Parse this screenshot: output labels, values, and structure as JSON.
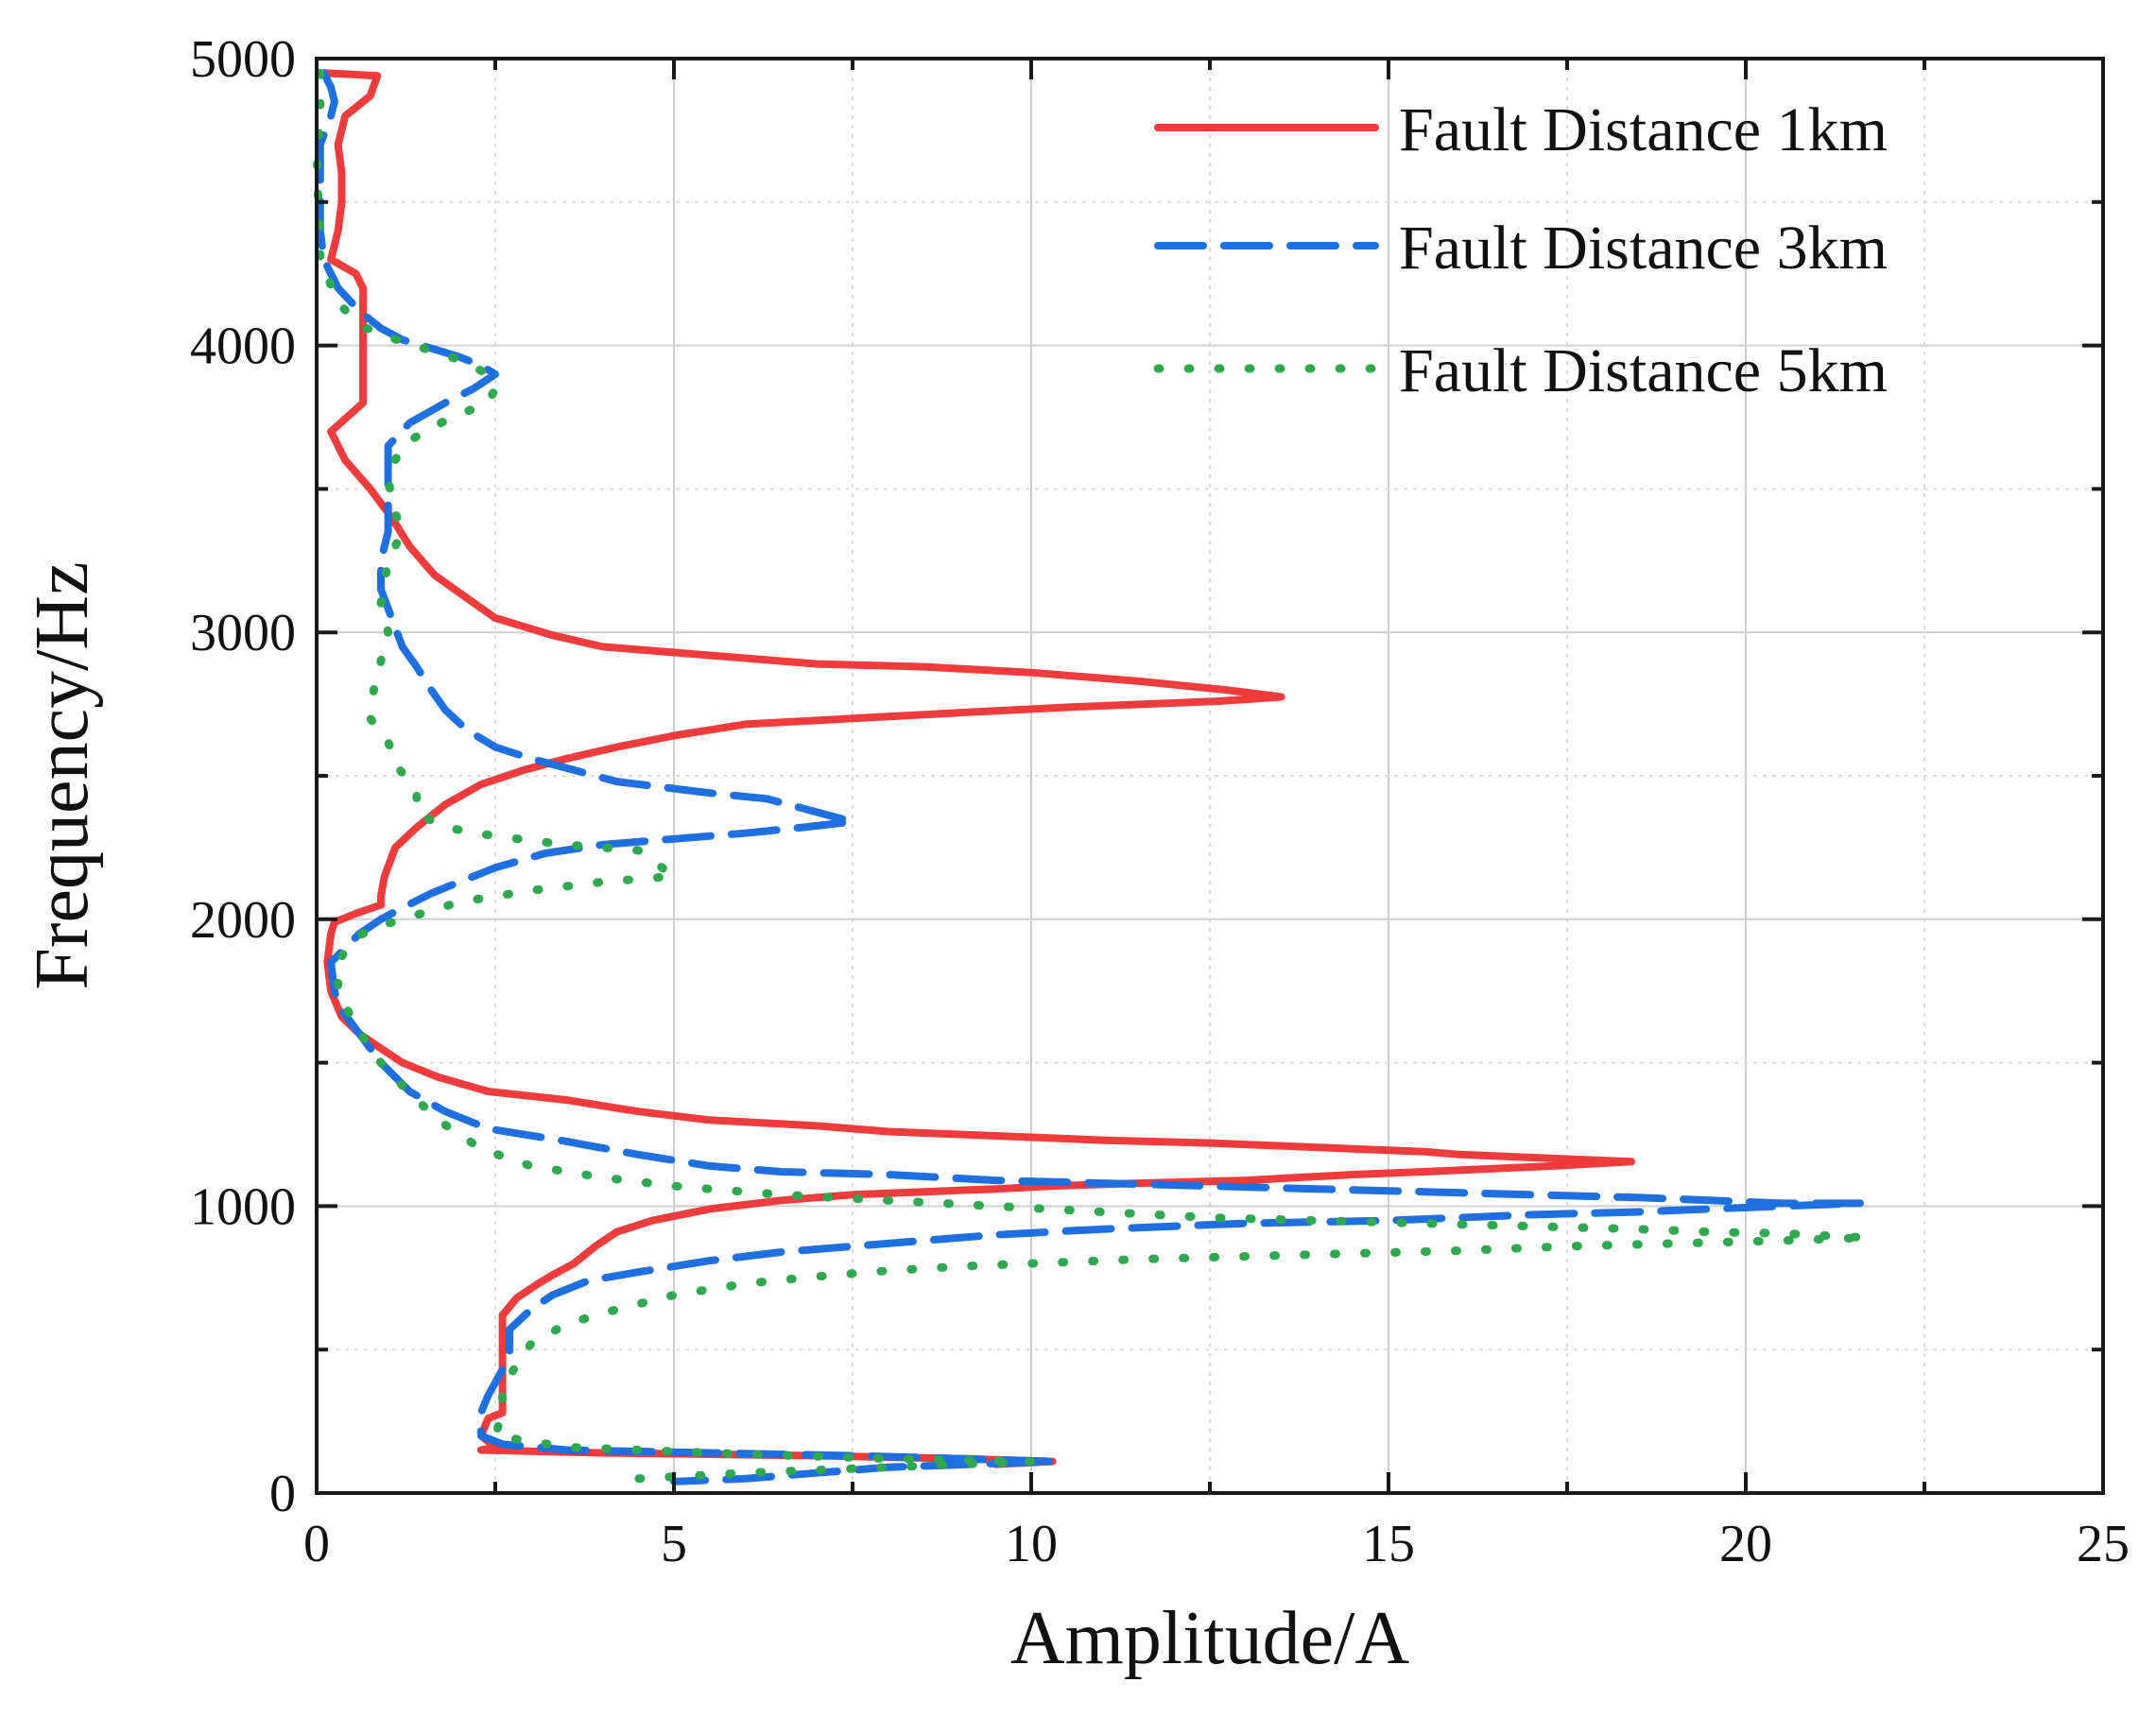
{
  "chart_data": {
    "type": "line",
    "title": "",
    "xlabel": "Amplitude/A",
    "ylabel": "Frequency/Hz",
    "xlim": [
      0,
      25
    ],
    "ylim": [
      0,
      5000
    ],
    "xticks": [
      0,
      5,
      10,
      15,
      20,
      25
    ],
    "yticks": [
      0,
      1000,
      2000,
      3000,
      4000,
      5000
    ],
    "xtick_labels": [
      "0",
      "5",
      "10",
      "15",
      "20",
      "25"
    ],
    "ytick_labels": [
      "0",
      "1000",
      "2000",
      "3000",
      "4000",
      "5000"
    ],
    "grid": true,
    "legend_position": "top-right",
    "series": [
      {
        "name": "Fault Distance 1km",
        "color": "#ee3b3b",
        "dash": "solid",
        "points": [
          [
            0.1,
            4950
          ],
          [
            0.85,
            4940
          ],
          [
            0.75,
            4870
          ],
          [
            0.4,
            4800
          ],
          [
            0.3,
            4700
          ],
          [
            0.35,
            4600
          ],
          [
            0.35,
            4500
          ],
          [
            0.3,
            4400
          ],
          [
            0.2,
            4300
          ],
          [
            0.55,
            4250
          ],
          [
            0.65,
            4200
          ],
          [
            0.65,
            4100
          ],
          [
            0.65,
            4000
          ],
          [
            0.65,
            3900
          ],
          [
            0.65,
            3800
          ],
          [
            0.2,
            3700
          ],
          [
            0.4,
            3600
          ],
          [
            0.75,
            3500
          ],
          [
            1.05,
            3400
          ],
          [
            1.3,
            3300
          ],
          [
            1.65,
            3200
          ],
          [
            2.1,
            3120
          ],
          [
            2.5,
            3050
          ],
          [
            3.3,
            2990
          ],
          [
            4.0,
            2950
          ],
          [
            5.5,
            2920
          ],
          [
            7.0,
            2890
          ],
          [
            8.5,
            2880
          ],
          [
            10.0,
            2860
          ],
          [
            11.5,
            2830
          ],
          [
            12.7,
            2800
          ],
          [
            13.5,
            2775
          ],
          [
            12.6,
            2760
          ],
          [
            10.6,
            2740
          ],
          [
            9.0,
            2720
          ],
          [
            7.5,
            2700
          ],
          [
            6.0,
            2680
          ],
          [
            5.0,
            2640
          ],
          [
            4.2,
            2600
          ],
          [
            3.5,
            2560
          ],
          [
            2.9,
            2520
          ],
          [
            2.3,
            2470
          ],
          [
            1.8,
            2400
          ],
          [
            1.4,
            2320
          ],
          [
            1.1,
            2250
          ],
          [
            0.95,
            2150
          ],
          [
            0.9,
            2080
          ],
          [
            0.9,
            2050
          ],
          [
            0.55,
            2020
          ],
          [
            0.25,
            1990
          ],
          [
            0.2,
            1950
          ],
          [
            0.15,
            1850
          ],
          [
            0.2,
            1750
          ],
          [
            0.35,
            1660
          ],
          [
            0.6,
            1600
          ],
          [
            0.9,
            1550
          ],
          [
            1.2,
            1500
          ],
          [
            1.7,
            1450
          ],
          [
            2.4,
            1400
          ],
          [
            3.5,
            1370
          ],
          [
            4.5,
            1330
          ],
          [
            5.5,
            1300
          ],
          [
            7.0,
            1280
          ],
          [
            8.0,
            1260
          ],
          [
            9.0,
            1250
          ],
          [
            10.0,
            1240
          ],
          [
            11.0,
            1230
          ],
          [
            12.5,
            1220
          ],
          [
            13.5,
            1210
          ],
          [
            14.5,
            1200
          ],
          [
            15.5,
            1190
          ],
          [
            16.0,
            1180
          ],
          [
            18.4,
            1155
          ],
          [
            17.3,
            1140
          ],
          [
            15.5,
            1120
          ],
          [
            14.5,
            1110
          ],
          [
            13.0,
            1090
          ],
          [
            11.5,
            1080
          ],
          [
            10.3,
            1070
          ],
          [
            9.5,
            1060
          ],
          [
            8.5,
            1050
          ],
          [
            7.5,
            1040
          ],
          [
            6.5,
            1020
          ],
          [
            5.5,
            990
          ],
          [
            4.7,
            950
          ],
          [
            4.2,
            910
          ],
          [
            3.9,
            860
          ],
          [
            3.6,
            800
          ],
          [
            3.3,
            760
          ],
          [
            3.1,
            730
          ],
          [
            2.8,
            680
          ],
          [
            2.6,
            620
          ],
          [
            2.6,
            550
          ],
          [
            2.6,
            450
          ],
          [
            2.6,
            350
          ],
          [
            2.6,
            280
          ],
          [
            2.4,
            260
          ],
          [
            2.3,
            200
          ],
          [
            2.5,
            160
          ],
          [
            2.3,
            150
          ],
          [
            4.0,
            140
          ],
          [
            7.0,
            130
          ],
          [
            9.0,
            120
          ],
          [
            10.3,
            110
          ],
          [
            9.5,
            100
          ]
        ]
      },
      {
        "name": "Fault Distance 3km",
        "color": "#1f6fe0",
        "dash": "long-dash",
        "points": [
          [
            0.1,
            4950
          ],
          [
            0.2,
            4900
          ],
          [
            0.25,
            4850
          ],
          [
            0.2,
            4800
          ],
          [
            0.05,
            4700
          ],
          [
            0.05,
            4600
          ],
          [
            0.05,
            4500
          ],
          [
            0.05,
            4400
          ],
          [
            0.1,
            4300
          ],
          [
            0.3,
            4200
          ],
          [
            0.6,
            4120
          ],
          [
            0.9,
            4060
          ],
          [
            1.2,
            4020
          ],
          [
            1.6,
            3990
          ],
          [
            2.0,
            3960
          ],
          [
            2.3,
            3930
          ],
          [
            2.5,
            3900
          ],
          [
            2.2,
            3850
          ],
          [
            1.8,
            3800
          ],
          [
            1.3,
            3730
          ],
          [
            1.0,
            3650
          ],
          [
            1.0,
            3550
          ],
          [
            1.0,
            3450
          ],
          [
            1.0,
            3350
          ],
          [
            0.9,
            3250
          ],
          [
            0.9,
            3150
          ],
          [
            1.05,
            3050
          ],
          [
            1.2,
            2950
          ],
          [
            1.4,
            2880
          ],
          [
            1.6,
            2800
          ],
          [
            1.8,
            2730
          ],
          [
            2.1,
            2660
          ],
          [
            2.5,
            2600
          ],
          [
            3.0,
            2560
          ],
          [
            3.6,
            2520
          ],
          [
            4.2,
            2480
          ],
          [
            5.5,
            2440
          ],
          [
            6.3,
            2420
          ],
          [
            7.5,
            2340
          ],
          [
            6.8,
            2320
          ],
          [
            6.0,
            2300
          ],
          [
            5.0,
            2280
          ],
          [
            4.0,
            2260
          ],
          [
            3.2,
            2230
          ],
          [
            2.5,
            2180
          ],
          [
            2.0,
            2130
          ],
          [
            1.6,
            2090
          ],
          [
            1.2,
            2040
          ],
          [
            0.9,
            2000
          ],
          [
            0.6,
            1950
          ],
          [
            0.4,
            1900
          ],
          [
            0.2,
            1850
          ],
          [
            0.25,
            1750
          ],
          [
            0.3,
            1700
          ],
          [
            0.6,
            1600
          ],
          [
            0.9,
            1500
          ],
          [
            1.3,
            1400
          ],
          [
            1.8,
            1330
          ],
          [
            2.4,
            1270
          ],
          [
            3.4,
            1230
          ],
          [
            4.5,
            1180
          ],
          [
            5.5,
            1140
          ],
          [
            6.5,
            1120
          ],
          [
            8.0,
            1110
          ],
          [
            9.5,
            1090
          ],
          [
            11.0,
            1080
          ],
          [
            12.5,
            1070
          ],
          [
            14.0,
            1060
          ],
          [
            15.5,
            1050
          ],
          [
            17.0,
            1040
          ],
          [
            18.5,
            1030
          ],
          [
            19.5,
            1020
          ],
          [
            20.5,
            1010
          ],
          [
            21.6,
            1010
          ],
          [
            20.5,
            1000
          ],
          [
            19.5,
            990
          ],
          [
            18.5,
            980
          ],
          [
            17.0,
            970
          ],
          [
            15.0,
            950
          ],
          [
            13.0,
            940
          ],
          [
            11.0,
            920
          ],
          [
            9.5,
            900
          ],
          [
            8.5,
            880
          ],
          [
            7.5,
            860
          ],
          [
            6.5,
            840
          ],
          [
            5.5,
            810
          ],
          [
            4.5,
            770
          ],
          [
            3.8,
            740
          ],
          [
            3.3,
            690
          ],
          [
            3.0,
            640
          ],
          [
            2.7,
            570
          ],
          [
            2.7,
            490
          ],
          [
            2.6,
            430
          ],
          [
            2.4,
            340
          ],
          [
            2.3,
            280
          ],
          [
            2.3,
            200
          ],
          [
            2.6,
            170
          ],
          [
            3.5,
            150
          ],
          [
            5.5,
            140
          ],
          [
            7.5,
            130
          ],
          [
            9.0,
            120
          ],
          [
            10.3,
            110
          ],
          [
            8.0,
            90
          ],
          [
            7.0,
            70
          ],
          [
            6.0,
            50
          ],
          [
            5.0,
            40
          ]
        ]
      },
      {
        "name": "Fault Distance 5km",
        "color": "#2fa84f",
        "dash": "dotted",
        "points": [
          [
            0.05,
            4950
          ],
          [
            0.05,
            4800
          ],
          [
            0.0,
            4600
          ],
          [
            0.05,
            4400
          ],
          [
            0.05,
            4300
          ],
          [
            0.3,
            4150
          ],
          [
            0.6,
            4070
          ],
          [
            1.0,
            4030
          ],
          [
            1.5,
            3990
          ],
          [
            2.0,
            3950
          ],
          [
            2.4,
            3900
          ],
          [
            2.5,
            3850
          ],
          [
            2.4,
            3800
          ],
          [
            1.9,
            3750
          ],
          [
            1.5,
            3700
          ],
          [
            1.2,
            3650
          ],
          [
            1.0,
            3550
          ],
          [
            1.05,
            3450
          ],
          [
            1.2,
            3350
          ],
          [
            1.0,
            3250
          ],
          [
            0.9,
            3100
          ],
          [
            1.0,
            3000
          ],
          [
            0.9,
            2900
          ],
          [
            0.8,
            2800
          ],
          [
            0.75,
            2700
          ],
          [
            1.0,
            2620
          ],
          [
            1.1,
            2540
          ],
          [
            1.3,
            2480
          ],
          [
            1.4,
            2430
          ],
          [
            1.4,
            2370
          ],
          [
            1.8,
            2320
          ],
          [
            2.5,
            2290
          ],
          [
            3.5,
            2260
          ],
          [
            4.5,
            2240
          ],
          [
            5.0,
            2150
          ],
          [
            4.0,
            2130
          ],
          [
            3.0,
            2100
          ],
          [
            2.0,
            2060
          ],
          [
            1.2,
            2000
          ],
          [
            0.8,
            1970
          ],
          [
            0.5,
            1930
          ],
          [
            0.3,
            1850
          ],
          [
            0.3,
            1750
          ],
          [
            0.5,
            1650
          ],
          [
            0.7,
            1570
          ],
          [
            0.9,
            1500
          ],
          [
            1.2,
            1420
          ],
          [
            1.7,
            1300
          ],
          [
            2.3,
            1200
          ],
          [
            3.0,
            1140
          ],
          [
            4.0,
            1100
          ],
          [
            5.0,
            1070
          ],
          [
            6.5,
            1040
          ],
          [
            8.0,
            1020
          ],
          [
            9.5,
            1000
          ],
          [
            11.0,
            980
          ],
          [
            12.5,
            960
          ],
          [
            14.0,
            950
          ],
          [
            15.5,
            940
          ],
          [
            17.0,
            930
          ],
          [
            18.5,
            920
          ],
          [
            19.5,
            910
          ],
          [
            20.5,
            905
          ],
          [
            21.7,
            890
          ],
          [
            20.5,
            880
          ],
          [
            19.0,
            870
          ],
          [
            17.5,
            860
          ],
          [
            16.0,
            845
          ],
          [
            14.5,
            835
          ],
          [
            13.0,
            825
          ],
          [
            11.5,
            815
          ],
          [
            10.0,
            800
          ],
          [
            9.0,
            790
          ],
          [
            8.0,
            775
          ],
          [
            7.0,
            755
          ],
          [
            6.0,
            730
          ],
          [
            5.0,
            690
          ],
          [
            4.2,
            640
          ],
          [
            3.5,
            590
          ],
          [
            3.0,
            520
          ],
          [
            2.8,
            450
          ],
          [
            2.6,
            360
          ],
          [
            2.6,
            280
          ],
          [
            2.5,
            200
          ],
          [
            3.5,
            160
          ],
          [
            5.5,
            140
          ],
          [
            8.0,
            120
          ],
          [
            10.0,
            110
          ],
          [
            8.0,
            90
          ],
          [
            6.0,
            70
          ],
          [
            4.5,
            50
          ]
        ]
      }
    ]
  }
}
